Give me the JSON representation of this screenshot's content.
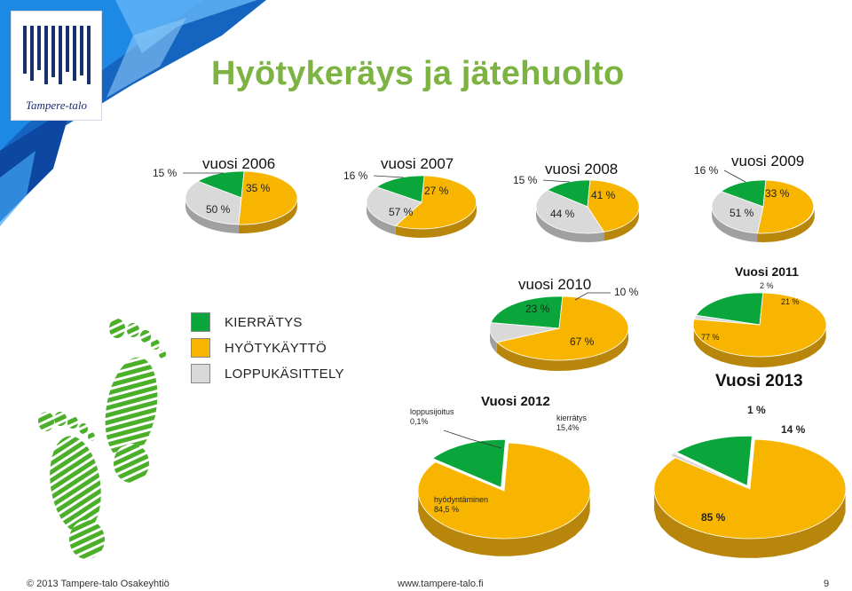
{
  "header": {
    "title": "Hyötykeräys ja jätehuolto",
    "logo_text": "Tampere-talo"
  },
  "legend": [
    {
      "label": "KIERRÄTYS",
      "color": "#0aa63c"
    },
    {
      "label": "HYÖTYKÄYTTÖ",
      "color": "#f7b500"
    },
    {
      "label": "LOPPUKÄSITTELY",
      "color": "#d9d9d9"
    }
  ],
  "colors": {
    "green": "#0aa63c",
    "yellow": "#f7b500",
    "gray": "#d9d9d9",
    "title_green": "#7cb342"
  },
  "chart_data": [
    {
      "type": "pie",
      "title": "vuosi 2006",
      "categories": [
        "KIERRÄTYS",
        "HYÖTYKÄYTTÖ",
        "LOPPUKÄSITTELY"
      ],
      "values": [
        15,
        50,
        35
      ],
      "labels": [
        "15 %",
        "50 %",
        "35 %"
      ]
    },
    {
      "type": "pie",
      "title": "vuosi 2007",
      "categories": [
        "KIERRÄTYS",
        "HYÖTYKÄYTTÖ",
        "LOPPUKÄSITTELY"
      ],
      "values": [
        16,
        57,
        27
      ],
      "labels": [
        "16 %",
        "57 %",
        "27 %"
      ]
    },
    {
      "type": "pie",
      "title": "vuosi 2008",
      "categories": [
        "KIERRÄTYS",
        "HYÖTYKÄYTTÖ",
        "LOPPUKÄSITTELY"
      ],
      "values": [
        15,
        44,
        41
      ],
      "labels": [
        "15 %",
        "44 %",
        "41 %"
      ]
    },
    {
      "type": "pie",
      "title": "vuosi 2009",
      "categories": [
        "KIERRÄTYS",
        "HYÖTYKÄYTTÖ",
        "LOPPUKÄSITTELY"
      ],
      "values": [
        16,
        51,
        33
      ],
      "labels": [
        "16 %",
        "51 %",
        "33 %"
      ]
    },
    {
      "type": "pie",
      "title": "vuosi 2010",
      "categories": [
        "KIERRÄTYS",
        "HYÖTYKÄYTTÖ",
        "LOPPUKÄSITTELY"
      ],
      "values": [
        23,
        67,
        10
      ],
      "labels": [
        "23 %",
        "67 %",
        "10 %"
      ]
    },
    {
      "type": "pie",
      "title": "Vuosi 2011",
      "categories": [
        "KIERRÄTYS",
        "HYÖTYKÄYTTÖ",
        "LOPPUKÄSITTELY"
      ],
      "values": [
        21,
        77,
        2
      ],
      "labels": [
        "21 %",
        "77 %",
        "2 %"
      ]
    },
    {
      "type": "pie",
      "title": "Vuosi 2012",
      "categories": [
        "kierrätys",
        "hyödyntäminen",
        "loppusijoitus"
      ],
      "values": [
        15.4,
        84.5,
        0.1
      ],
      "labels": [
        "kierrätys\n15,4%",
        "hyödyntäminen\n84,5 %",
        "loppusijoitus\n0,1%"
      ]
    },
    {
      "type": "pie",
      "title": "Vuosi 2013",
      "categories": [
        "KIERRÄTYS",
        "HYÖTYKÄYTTÖ",
        "LOPPUKÄSITTELY"
      ],
      "values": [
        14,
        85,
        1
      ],
      "labels": [
        "14 %",
        "85 %",
        "1 %"
      ]
    }
  ],
  "footer": {
    "copyright": "©  2013 Tampere-talo Osakeyhtiö",
    "url": "www.tampere-talo.fi",
    "page": "9"
  }
}
